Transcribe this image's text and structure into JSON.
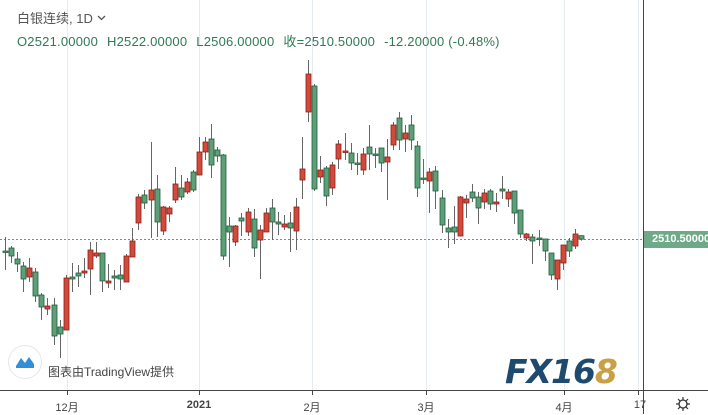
{
  "header": {
    "symbol_title": "白银连续, 1D",
    "open": "O2521.00000",
    "high": "H2522.00000",
    "low": "L2506.00000",
    "close": "收=2510.50000",
    "change": "-12.20000 (-0.48%)"
  },
  "price_tag": "2510.50000",
  "watermark": {
    "text": "图表由TradingView提供",
    "logo": "FX168"
  },
  "colors": {
    "up": "#d24a3c",
    "down": "#5e9e78",
    "up_border": "#8b1e16",
    "down_border": "#1f5c3a",
    "last_price": "#6fa987"
  },
  "icons": {
    "settings": "gear-icon",
    "interval_dropdown": "chevron-down-icon"
  },
  "chart_data": {
    "type": "candlestick",
    "interval": "1D",
    "x_tick_labels": [
      "12月",
      "2021",
      "2月",
      "3月",
      "4月",
      "17"
    ],
    "last_price": 2510.5,
    "grid": "vertical",
    "ohlc": [
      [
        2475,
        2517,
        2418,
        2472
      ],
      [
        2484,
        2490,
        2439,
        2460
      ],
      [
        2451,
        2472,
        2412,
        2436
      ],
      [
        2430,
        2442,
        2352,
        2391
      ],
      [
        2397,
        2454,
        2382,
        2424
      ],
      [
        2412,
        2424,
        2322,
        2340
      ],
      [
        2343,
        2349,
        2268,
        2307
      ],
      [
        2301,
        2334,
        2283,
        2310
      ],
      [
        2313,
        2334,
        2193,
        2220
      ],
      [
        2247,
        2268,
        2154,
        2226
      ],
      [
        2238,
        2403,
        2238,
        2394
      ],
      [
        2397,
        2439,
        2352,
        2391
      ],
      [
        2409,
        2433,
        2367,
        2400
      ],
      [
        2409,
        2454,
        2394,
        2415
      ],
      [
        2421,
        2502,
        2343,
        2478
      ],
      [
        2460,
        2502,
        2454,
        2469
      ],
      [
        2469,
        2469,
        2352,
        2385
      ],
      [
        2379,
        2436,
        2364,
        2385
      ],
      [
        2400,
        2418,
        2358,
        2394
      ],
      [
        2403,
        2433,
        2358,
        2391
      ],
      [
        2382,
        2466,
        2382,
        2460
      ],
      [
        2457,
        2544,
        2457,
        2505
      ],
      [
        2559,
        2646,
        2538,
        2637
      ],
      [
        2643,
        2658,
        2601,
        2619
      ],
      [
        2628,
        2802,
        2514,
        2658
      ],
      [
        2661,
        2703,
        2517,
        2562
      ],
      [
        2535,
        2610,
        2523,
        2607
      ],
      [
        2586,
        2610,
        2562,
        2604
      ],
      [
        2628,
        2727,
        2619,
        2676
      ],
      [
        2664,
        2703,
        2628,
        2637
      ],
      [
        2652,
        2694,
        2646,
        2682
      ],
      [
        2712,
        2718,
        2652,
        2658
      ],
      [
        2703,
        2817,
        2703,
        2772
      ],
      [
        2772,
        2817,
        2748,
        2802
      ],
      [
        2811,
        2856,
        2694,
        2733
      ],
      [
        2778,
        2787,
        2742,
        2760
      ],
      [
        2763,
        2766,
        2448,
        2460
      ],
      [
        2550,
        2577,
        2427,
        2532
      ],
      [
        2502,
        2553,
        2490,
        2550
      ],
      [
        2574,
        2589,
        2520,
        2565
      ],
      [
        2532,
        2604,
        2520,
        2592
      ],
      [
        2571,
        2601,
        2457,
        2484
      ],
      [
        2508,
        2553,
        2391,
        2538
      ],
      [
        2532,
        2604,
        2532,
        2589
      ],
      [
        2604,
        2631,
        2508,
        2562
      ],
      [
        2562,
        2592,
        2523,
        2556
      ],
      [
        2547,
        2583,
        2538,
        2556
      ],
      [
        2559,
        2592,
        2472,
        2544
      ],
      [
        2535,
        2634,
        2478,
        2607
      ],
      [
        2688,
        2817,
        2631,
        2721
      ],
      [
        2892,
        3048,
        2862,
        3006
      ],
      [
        2970,
        2976,
        2655,
        2661
      ],
      [
        2697,
        2760,
        2679,
        2718
      ],
      [
        2724,
        2730,
        2610,
        2640
      ],
      [
        2664,
        2742,
        2643,
        2733
      ],
      [
        2751,
        2808,
        2721,
        2796
      ],
      [
        2772,
        2829,
        2748,
        2775
      ],
      [
        2769,
        2799,
        2718,
        2739
      ],
      [
        2739,
        2769,
        2703,
        2736
      ],
      [
        2718,
        2784,
        2703,
        2766
      ],
      [
        2787,
        2853,
        2718,
        2766
      ],
      [
        2766,
        2784,
        2724,
        2765
      ],
      [
        2784,
        2784,
        2712,
        2739
      ],
      [
        2742,
        2811,
        2628,
        2757
      ],
      [
        2793,
        2862,
        2778,
        2853
      ],
      [
        2874,
        2892,
        2778,
        2808
      ],
      [
        2811,
        2853,
        2772,
        2829
      ],
      [
        2853,
        2883,
        2778,
        2808
      ],
      [
        2790,
        2805,
        2637,
        2664
      ],
      [
        2694,
        2751,
        2676,
        2693
      ],
      [
        2685,
        2724,
        2589,
        2712
      ],
      [
        2715,
        2730,
        2601,
        2655
      ],
      [
        2634,
        2658,
        2529,
        2553
      ],
      [
        2544,
        2571,
        2484,
        2532
      ],
      [
        2547,
        2610,
        2496,
        2532
      ],
      [
        2520,
        2640,
        2520,
        2637
      ],
      [
        2619,
        2643,
        2574,
        2631
      ],
      [
        2652,
        2676,
        2622,
        2634
      ],
      [
        2637,
        2652,
        2556,
        2604
      ],
      [
        2622,
        2661,
        2601,
        2649
      ],
      [
        2655,
        2661,
        2598,
        2616
      ],
      [
        2616,
        2649,
        2592,
        2622
      ],
      [
        2661,
        2700,
        2631,
        2655
      ],
      [
        2631,
        2661,
        2607,
        2652
      ],
      [
        2655,
        2655,
        2556,
        2589
      ],
      [
        2598,
        2598,
        2514,
        2526
      ],
      [
        2514,
        2529,
        2505,
        2526
      ],
      [
        2517,
        2526,
        2436,
        2505
      ],
      [
        2514,
        2538,
        2490,
        2511
      ],
      [
        2511,
        2511,
        2445,
        2475
      ],
      [
        2469,
        2469,
        2388,
        2403
      ],
      [
        2391,
        2448,
        2358,
        2448
      ],
      [
        2439,
        2493,
        2418,
        2493
      ],
      [
        2505,
        2514,
        2457,
        2475
      ],
      [
        2490,
        2541,
        2481,
        2526
      ],
      [
        2521,
        2522,
        2506,
        2510.5
      ]
    ]
  }
}
